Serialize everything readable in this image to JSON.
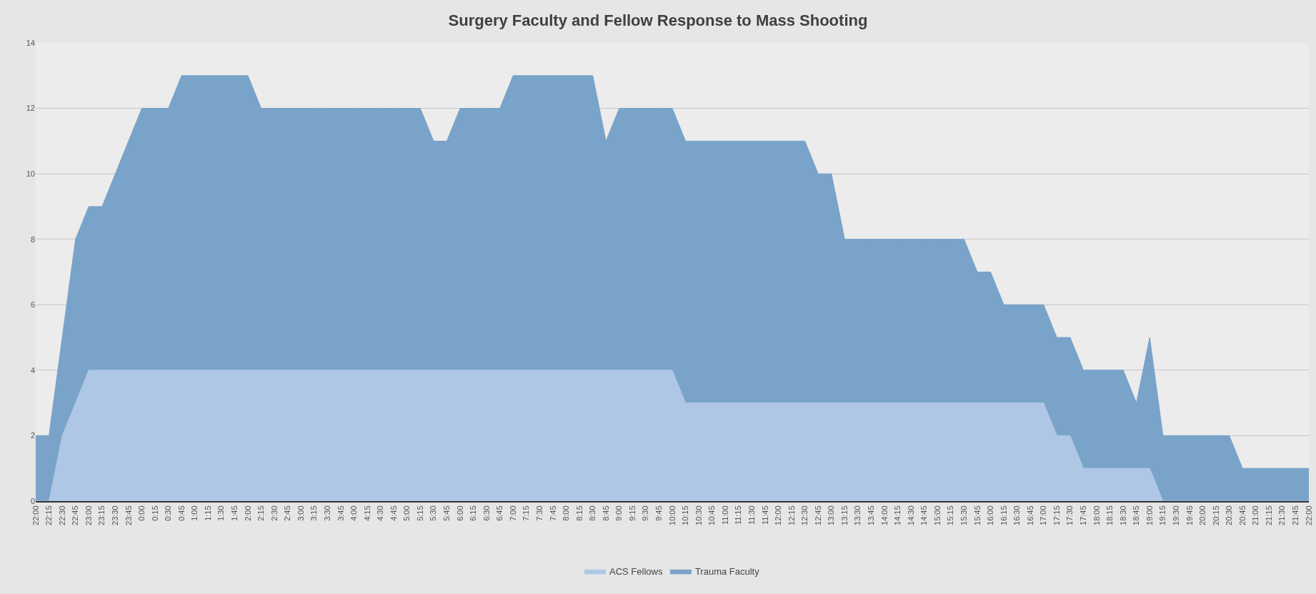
{
  "chart_data": {
    "type": "area",
    "title": "Surgery Faculty and Fellow Response to Mass Shooting",
    "categories": [
      "22:00",
      "22:15",
      "22:30",
      "22:45",
      "23:00",
      "23:15",
      "23:30",
      "23:45",
      "0:00",
      "0:15",
      "0:30",
      "0:45",
      "1:00",
      "1:15",
      "1:30",
      "1:45",
      "2:00",
      "2:15",
      "2:30",
      "2:45",
      "3:00",
      "3:15",
      "3:30",
      "3:45",
      "4:00",
      "4:15",
      "4:30",
      "4:45",
      "5:00",
      "5:15",
      "5:30",
      "5:45",
      "6:00",
      "6:15",
      "6:30",
      "6:45",
      "7:00",
      "7:15",
      "7:30",
      "7:45",
      "8:00",
      "8:15",
      "8:30",
      "8:45",
      "9:00",
      "9:15",
      "9:30",
      "9:45",
      "10:00",
      "10:15",
      "10:30",
      "10:45",
      "11:00",
      "11:15",
      "11:30",
      "11:45",
      "12:00",
      "12:15",
      "12:30",
      "12:45",
      "13:00",
      "13:15",
      "13:30",
      "13:45",
      "14:00",
      "14:15",
      "14:30",
      "14:45",
      "15:00",
      "15:15",
      "15:30",
      "15:45",
      "16:00",
      "16:15",
      "16:30",
      "16:45",
      "17:00",
      "17:15",
      "17:30",
      "17:45",
      "18:00",
      "18:15",
      "18:30",
      "18:45",
      "19:00",
      "19:15",
      "19:30",
      "19:45",
      "20:00",
      "20:15",
      "20:30",
      "20:45",
      "21:00",
      "21:15",
      "21:30",
      "21:45",
      "22:00"
    ],
    "series": [
      {
        "name": "ACS Fellows",
        "color": "#adc7e5",
        "values": [
          0,
          0,
          2,
          3,
          4,
          4,
          4,
          4,
          4,
          4,
          4,
          4,
          4,
          4,
          4,
          4,
          4,
          4,
          4,
          4,
          4,
          4,
          4,
          4,
          4,
          4,
          4,
          4,
          4,
          4,
          4,
          4,
          4,
          4,
          4,
          4,
          4,
          4,
          4,
          4,
          4,
          4,
          4,
          4,
          4,
          4,
          4,
          4,
          4,
          3,
          3,
          3,
          3,
          3,
          3,
          3,
          3,
          3,
          3,
          3,
          3,
          3,
          3,
          3,
          3,
          3,
          3,
          3,
          3,
          3,
          3,
          3,
          3,
          3,
          3,
          3,
          3,
          2,
          2,
          1,
          1,
          1,
          1,
          1,
          1,
          0,
          0,
          0,
          0,
          0,
          0,
          0,
          0,
          0,
          0,
          0,
          0
        ]
      },
      {
        "name": "Trauma Faculty",
        "color": "#7aa3c9",
        "values": [
          2,
          2,
          5,
          8,
          9,
          9,
          10,
          11,
          12,
          12,
          12,
          13,
          13,
          13,
          13,
          13,
          13,
          12,
          12,
          12,
          12,
          12,
          12,
          12,
          12,
          12,
          12,
          12,
          12,
          12,
          11,
          11,
          12,
          12,
          12,
          12,
          13,
          13,
          13,
          13,
          13,
          13,
          13,
          11,
          12,
          12,
          12,
          12,
          12,
          11,
          11,
          11,
          11,
          11,
          11,
          11,
          11,
          11,
          11,
          10,
          10,
          8,
          8,
          8,
          8,
          8,
          8,
          8,
          8,
          8,
          8,
          7,
          7,
          6,
          6,
          6,
          6,
          5,
          5,
          4,
          4,
          4,
          4,
          3,
          5,
          2,
          2,
          2,
          2,
          2,
          2,
          1,
          1,
          1,
          1,
          1,
          1
        ]
      }
    ],
    "ylim": [
      0,
      14
    ],
    "yticks": [
      0,
      2,
      4,
      6,
      8,
      10,
      12,
      14
    ],
    "grid": "y",
    "legend": "bottom"
  }
}
